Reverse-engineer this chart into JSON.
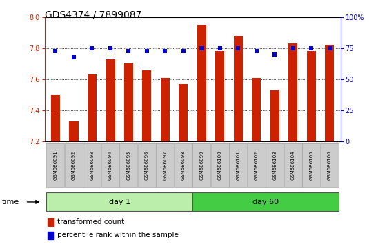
{
  "title": "GDS4374 / 7899087",
  "samples": [
    "GSM586091",
    "GSM586092",
    "GSM586093",
    "GSM586094",
    "GSM586095",
    "GSM586096",
    "GSM586097",
    "GSM586098",
    "GSM586099",
    "GSM586100",
    "GSM586101",
    "GSM586102",
    "GSM586103",
    "GSM586104",
    "GSM586105",
    "GSM586106"
  ],
  "bar_values": [
    7.5,
    7.33,
    7.63,
    7.73,
    7.7,
    7.66,
    7.61,
    7.57,
    7.95,
    7.78,
    7.88,
    7.61,
    7.53,
    7.83,
    7.78,
    7.82
  ],
  "dot_values": [
    73,
    68,
    75,
    75,
    73,
    73,
    73,
    73,
    75,
    75,
    75,
    73,
    70,
    75,
    75,
    75
  ],
  "ymin": 7.2,
  "ymax": 8.0,
  "y2min": 0,
  "y2max": 100,
  "yticks": [
    7.2,
    7.4,
    7.6,
    7.8,
    8.0
  ],
  "y2ticks": [
    0,
    25,
    50,
    75,
    100
  ],
  "y2ticklabels": [
    "0",
    "25",
    "50",
    "75",
    "100%"
  ],
  "bar_color": "#cc2200",
  "dot_color": "#0000cc",
  "day1_color": "#bbeeaa",
  "day60_color": "#44cc44",
  "day1_label": "day 1",
  "day60_label": "day 60",
  "grid_lines": [
    7.4,
    7.6,
    7.8
  ],
  "bar_width": 0.5,
  "label_fontsize": 7,
  "title_fontsize": 10
}
